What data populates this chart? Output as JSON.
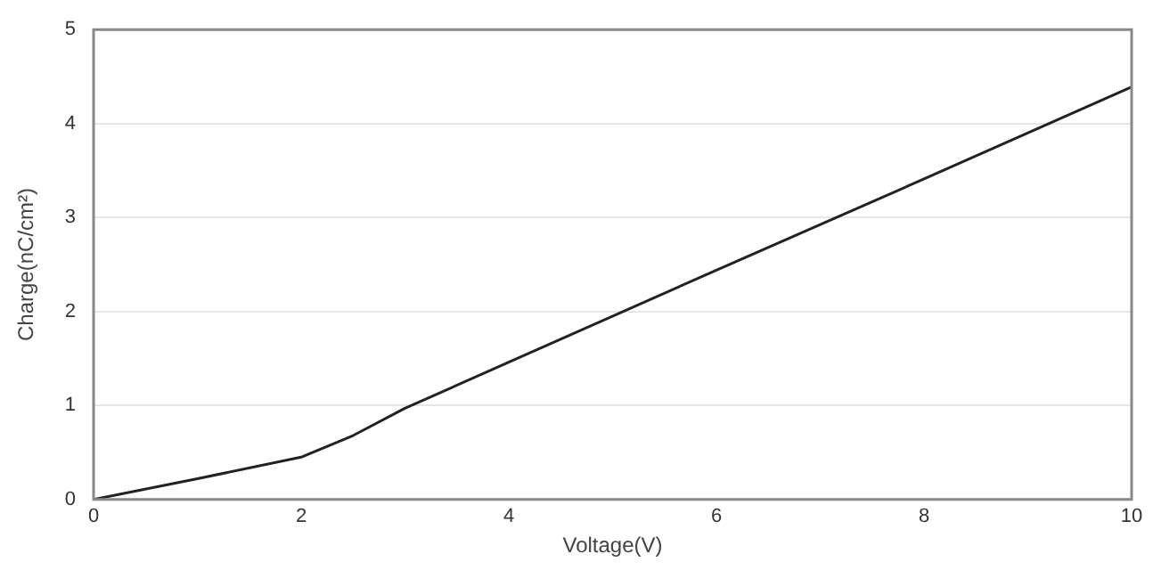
{
  "chart_data": {
    "type": "line",
    "xlabel": "Voltage(V)",
    "ylabel": "Charge(nC/cm²)",
    "x": [
      0,
      1,
      2,
      2.5,
      3,
      4,
      6,
      8,
      10
    ],
    "series": [
      {
        "color": "#222222",
        "values": [
          0,
          0.22,
          0.45,
          0.68,
          0.97,
          1.46,
          2.44,
          3.41,
          4.39
        ]
      }
    ],
    "xlim": [
      0,
      10
    ],
    "xticks": [
      0,
      2,
      4,
      6,
      8,
      10
    ],
    "ylim": [
      0,
      5
    ],
    "yticks": [
      0,
      1,
      2,
      3,
      4,
      5
    ],
    "grid": "y",
    "legend": false,
    "marker": "none",
    "line_style": "solid"
  }
}
